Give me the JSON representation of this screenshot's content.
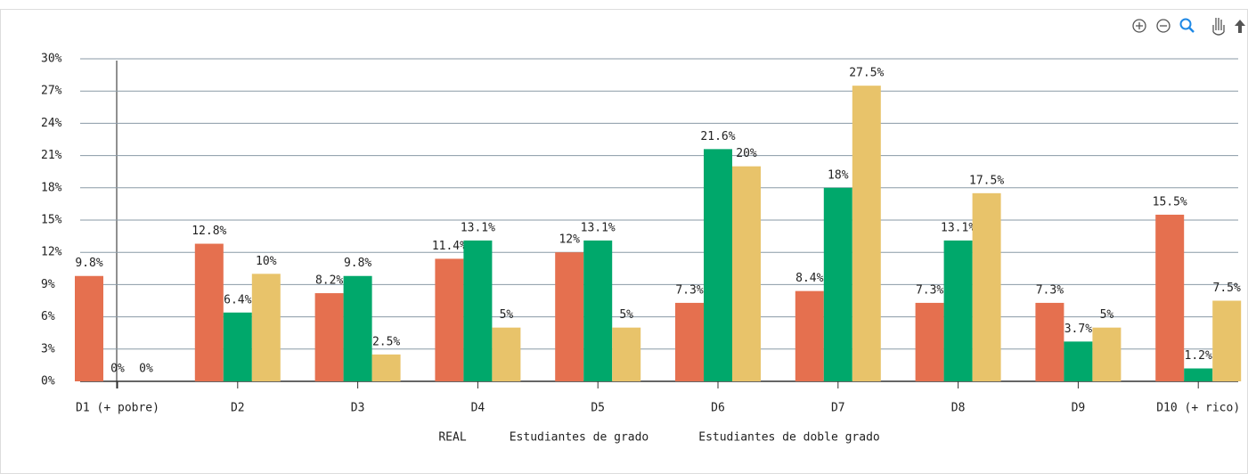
{
  "chart_data": {
    "type": "bar",
    "categories": [
      "D1 (+ pobre)",
      "D2",
      "D3",
      "D4",
      "D5",
      "D6",
      "D7",
      "D8",
      "D9",
      "D10 (+ rico)"
    ],
    "series": [
      {
        "name": "REAL",
        "color": "#e5704f",
        "values": [
          9.8,
          12.8,
          8.2,
          11.4,
          12,
          7.3,
          8.4,
          7.3,
          7.3,
          15.5
        ],
        "value_labels": [
          "9.8%",
          "12.8%",
          "8.2%",
          "11.4%",
          "12%",
          "7.3%",
          "8.4%",
          "7.3%",
          "7.3%",
          "15.5%"
        ]
      },
      {
        "name": "Estudiantes de grado",
        "color": "#00a86b",
        "values": [
          0,
          6.4,
          9.8,
          13.1,
          13.1,
          21.6,
          18,
          13.1,
          3.7,
          1.2
        ],
        "value_labels": [
          "0%",
          "6.4%",
          "9.8%",
          "13.1%",
          "13.1%",
          "21.6%",
          "18%",
          "13.1%",
          "3.7%",
          "1.2%"
        ]
      },
      {
        "name": "Estudiantes de doble grado",
        "color": "#e8c36a",
        "values": [
          0,
          10,
          2.5,
          5,
          5,
          20,
          27.5,
          17.5,
          5,
          7.5
        ],
        "value_labels": [
          "0%",
          "10%",
          "2.5%",
          "5%",
          "5%",
          "20%",
          "27.5%",
          "17.5%",
          "5%",
          "7.5%"
        ]
      }
    ],
    "ylim": [
      0,
      30
    ],
    "yticks": [
      {
        "value": 0,
        "label": "0%"
      },
      {
        "value": 3,
        "label": "3%"
      },
      {
        "value": 6,
        "label": "6%"
      },
      {
        "value": 9,
        "label": "9%"
      },
      {
        "value": 12,
        "label": "12%"
      },
      {
        "value": 15,
        "label": "15%"
      },
      {
        "value": 18,
        "label": "18%"
      },
      {
        "value": 21,
        "label": "21%"
      },
      {
        "value": 24,
        "label": "24%"
      },
      {
        "value": 27,
        "label": "27%"
      },
      {
        "value": 30,
        "label": "30%"
      }
    ],
    "grid": true
  }
}
